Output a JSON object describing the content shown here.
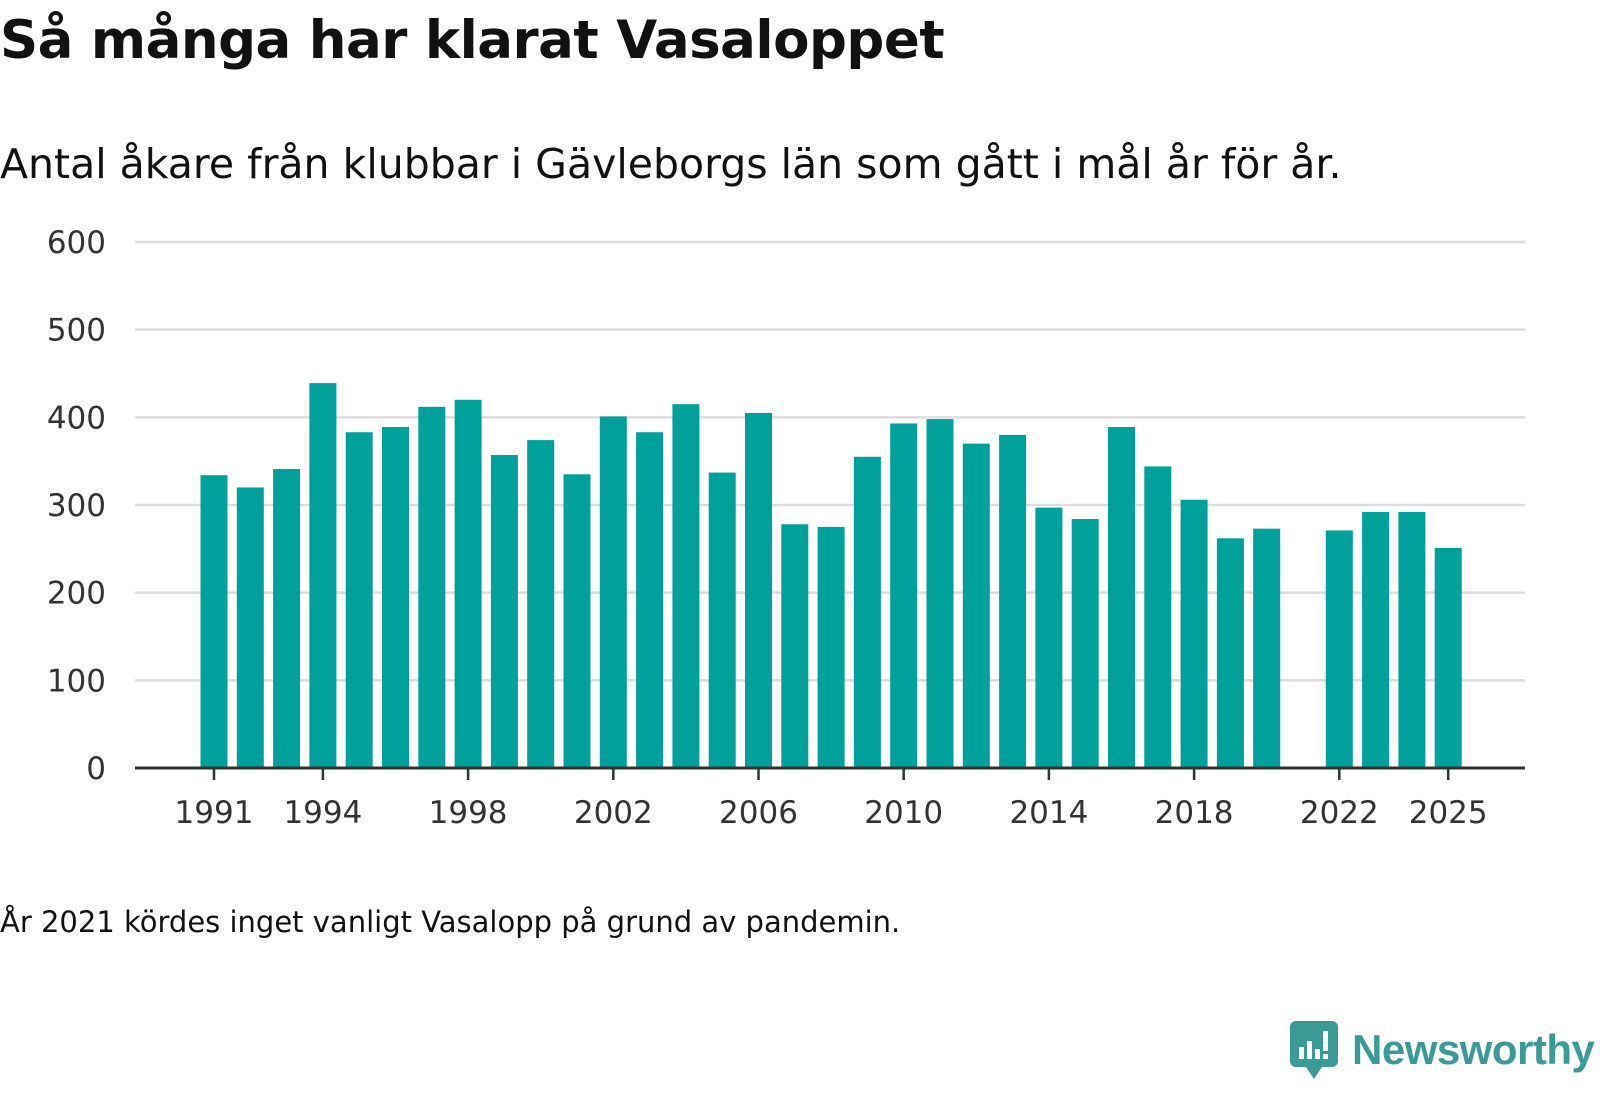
{
  "header": {
    "title": "Så många har klarat Vasaloppet",
    "subtitle": "Antal åkare från klubbar i Gävleborgs län som gått i mål år för år."
  },
  "footnote": "År 2021 kördes inget vanligt Vasalopp på grund av pandemin.",
  "logo": {
    "text": "Newsworthy",
    "icon": "newsworthy-logo-icon"
  },
  "colors": {
    "bar": "#00a19a",
    "grid": "#dddddd",
    "axis": "#333333",
    "logo": "#3a9a96"
  },
  "chart_data": {
    "type": "bar",
    "title": "Så många har klarat Vasaloppet",
    "subtitle": "Antal åkare från klubbar i Gävleborgs län som gått i mål år för år.",
    "xlabel": "",
    "ylabel": "",
    "ylim": [
      0,
      600
    ],
    "yticks": [
      0,
      100,
      200,
      300,
      400,
      500,
      600
    ],
    "xticks": [
      1991,
      1994,
      1998,
      2002,
      2006,
      2010,
      2014,
      2018,
      2022,
      2025
    ],
    "grid": true,
    "categories": [
      1991,
      1992,
      1993,
      1994,
      1995,
      1996,
      1997,
      1998,
      1999,
      2000,
      2001,
      2002,
      2003,
      2004,
      2005,
      2006,
      2007,
      2008,
      2009,
      2010,
      2011,
      2012,
      2013,
      2014,
      2015,
      2016,
      2017,
      2018,
      2019,
      2020,
      2021,
      2022,
      2023,
      2024,
      2025
    ],
    "values": [
      334,
      320,
      341,
      439,
      383,
      389,
      412,
      420,
      357,
      374,
      335,
      401,
      383,
      415,
      337,
      405,
      278,
      275,
      355,
      393,
      398,
      370,
      380,
      297,
      284,
      389,
      344,
      306,
      262,
      273,
      null,
      271,
      292,
      292,
      251
    ]
  }
}
